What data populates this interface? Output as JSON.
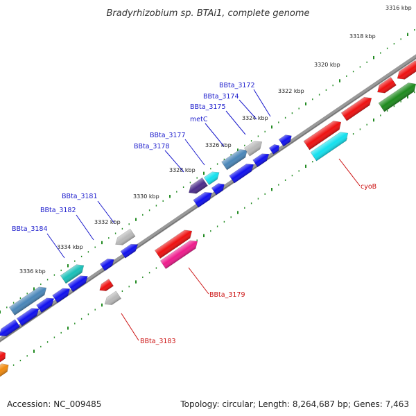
{
  "title": "Bradyrhizobium sp. BTAi1, complete genome",
  "footer": {
    "accession": "Accession: NC_009485",
    "summary": "Topology: circular; Length: 8,264,687 bp; Genes: 7,463"
  },
  "ticks": [
    "3316 kbp",
    "3318 kbp",
    "3320 kbp",
    "3322 kbp",
    "3324 kbp",
    "3326 kbp",
    "3328 kbp",
    "3330 kbp",
    "3332 kbp",
    "3334 kbp",
    "3336 kbp"
  ],
  "gene_labels": [
    {
      "text": "BBta_3172",
      "color": "blue"
    },
    {
      "text": "BBta_3174",
      "color": "blue"
    },
    {
      "text": "BBta_3175",
      "color": "blue"
    },
    {
      "text": "metC",
      "color": "blue"
    },
    {
      "text": "BBta_3177",
      "color": "blue"
    },
    {
      "text": "BBta_3178",
      "color": "blue"
    },
    {
      "text": "BBta_3181",
      "color": "blue"
    },
    {
      "text": "BBta_3182",
      "color": "blue"
    },
    {
      "text": "BBta_3184",
      "color": "blue"
    },
    {
      "text": "cyoB",
      "color": "red"
    },
    {
      "text": "BBta_3179",
      "color": "red"
    },
    {
      "text": "BBta_3183",
      "color": "red"
    }
  ],
  "colors": {
    "backbone": "#8a8a8a",
    "tick": "#228b22",
    "gene_blue": "#1010ee",
    "gene_red": "#ee1010",
    "gene_cyan": "#14e0ee",
    "gene_steelblue": "#4a86b8",
    "gene_gray": "#b8b8b8",
    "gene_teal": "#1ac0b8",
    "gene_magenta": "#ee1c8c",
    "gene_indigo": "#4b2d8a",
    "gene_green": "#1e8a1e",
    "gene_orange": "#f08a10"
  }
}
